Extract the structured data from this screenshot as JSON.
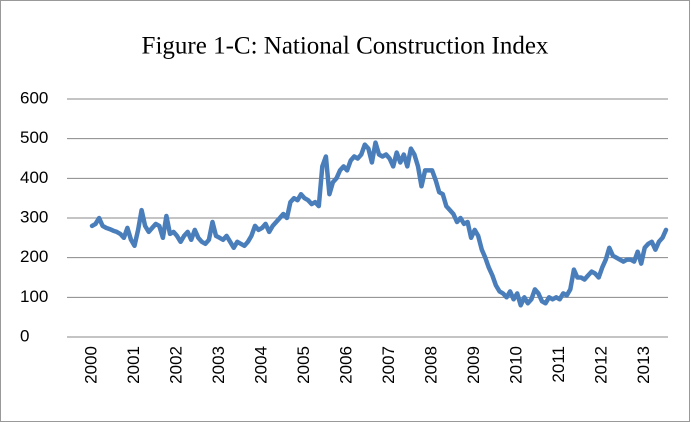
{
  "chart_data": {
    "type": "line",
    "title": "Figure 1-C: National Construction Index",
    "categories": [
      "2000",
      null,
      null,
      null,
      null,
      null,
      null,
      null,
      null,
      null,
      null,
      null,
      "2001",
      null,
      null,
      null,
      null,
      null,
      null,
      null,
      null,
      null,
      null,
      null,
      "2002",
      null,
      null,
      null,
      null,
      null,
      null,
      null,
      null,
      null,
      null,
      null,
      "2003",
      null,
      null,
      null,
      null,
      null,
      null,
      null,
      null,
      null,
      null,
      null,
      "2004",
      null,
      null,
      null,
      null,
      null,
      null,
      null,
      null,
      null,
      null,
      null,
      "2005",
      null,
      null,
      null,
      null,
      null,
      null,
      null,
      null,
      null,
      null,
      null,
      "2006",
      null,
      null,
      null,
      null,
      null,
      null,
      null,
      null,
      null,
      null,
      null,
      "2007",
      null,
      null,
      null,
      null,
      null,
      null,
      null,
      null,
      null,
      null,
      null,
      "2008",
      null,
      null,
      null,
      null,
      null,
      null,
      null,
      null,
      null,
      null,
      null,
      "2009",
      null,
      null,
      null,
      null,
      null,
      null,
      null,
      null,
      null,
      null,
      null,
      "2010",
      null,
      null,
      null,
      null,
      null,
      null,
      null,
      null,
      null,
      null,
      null,
      "2011",
      null,
      null,
      null,
      null,
      null,
      null,
      null,
      null,
      null,
      null,
      null,
      "2012",
      null,
      null,
      null,
      null,
      null,
      null,
      null,
      null,
      null,
      null,
      null,
      "2013",
      null,
      null,
      null,
      null,
      null,
      null
    ],
    "values": [
      280,
      285,
      300,
      280,
      275,
      272,
      268,
      265,
      260,
      250,
      275,
      245,
      230,
      270,
      320,
      280,
      265,
      275,
      285,
      280,
      250,
      305,
      260,
      265,
      255,
      240,
      255,
      265,
      245,
      270,
      250,
      240,
      235,
      245,
      290,
      255,
      250,
      245,
      255,
      240,
      225,
      240,
      235,
      230,
      240,
      255,
      280,
      270,
      275,
      285,
      265,
      280,
      290,
      300,
      310,
      300,
      340,
      350,
      345,
      360,
      350,
      345,
      335,
      340,
      330,
      430,
      455,
      360,
      390,
      400,
      420,
      430,
      420,
      445,
      455,
      450,
      460,
      485,
      475,
      440,
      490,
      460,
      455,
      460,
      450,
      430,
      465,
      440,
      460,
      430,
      475,
      460,
      430,
      380,
      420,
      420,
      420,
      395,
      365,
      360,
      330,
      320,
      310,
      290,
      300,
      285,
      290,
      250,
      270,
      255,
      220,
      200,
      175,
      155,
      130,
      115,
      110,
      100,
      115,
      95,
      110,
      80,
      100,
      85,
      95,
      120,
      110,
      90,
      85,
      100,
      95,
      100,
      95,
      110,
      105,
      120,
      170,
      150,
      150,
      145,
      155,
      165,
      160,
      150,
      175,
      195,
      225,
      205,
      200,
      195,
      190,
      195,
      195,
      190,
      215,
      185,
      225,
      235,
      240,
      220,
      240,
      250,
      270
    ],
    "color": "#4a7ebb",
    "ylim": [
      0,
      600
    ],
    "yticks": [
      0,
      100,
      200,
      300,
      400,
      500,
      600
    ],
    "grid": true
  }
}
